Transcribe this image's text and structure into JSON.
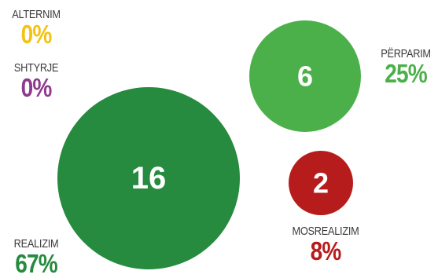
{
  "chart_data": {
    "type": "bubble",
    "title": "",
    "series": [
      {
        "category": "ALTERNIM",
        "count": 0,
        "percent": "0%",
        "color": "#f2c314"
      },
      {
        "category": "SHTYRJE",
        "count": 0,
        "percent": "0%",
        "color": "#8e3a8e"
      },
      {
        "category": "PËRPARIM",
        "count": 6,
        "percent": "25%",
        "color": "#4bb04a"
      },
      {
        "category": "REALIZIM",
        "count": 16,
        "percent": "67%",
        "color": "#268a3f"
      },
      {
        "category": "MOSREALIZIM",
        "count": 2,
        "percent": "8%",
        "color": "#b71c1c"
      }
    ]
  }
}
